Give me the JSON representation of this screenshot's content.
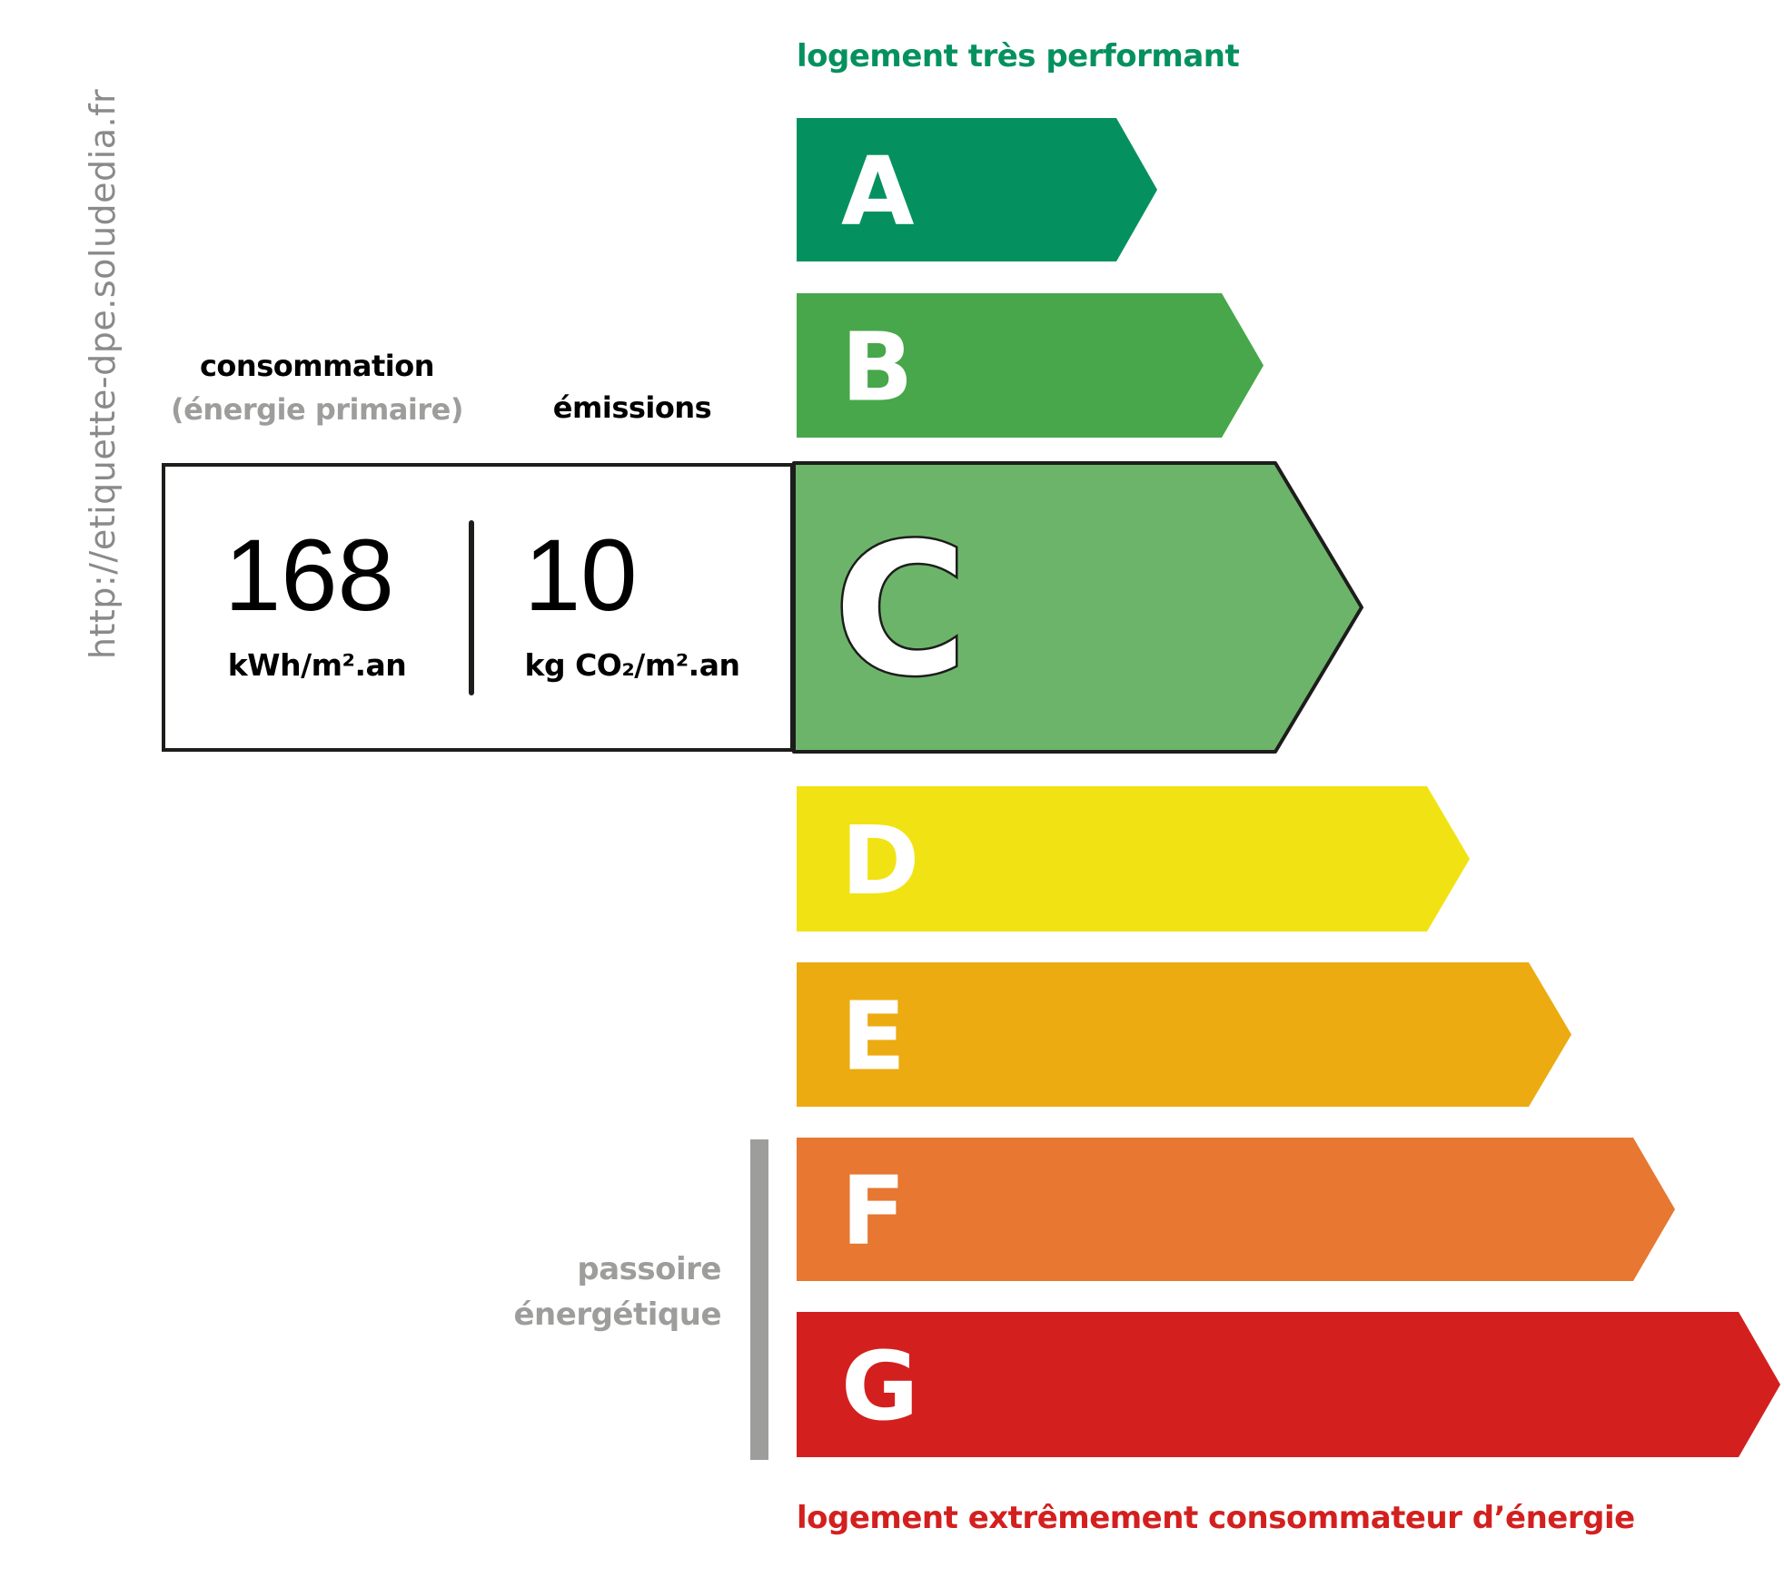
{
  "header": {
    "top_label": "logement très performant",
    "bottom_label": "logement extrêmement consommateur d’énergie"
  },
  "website": "http://etiquette-dpe.soludedia.fr",
  "consumption": {
    "title": "consommation",
    "subtitle": "(énergie primaire)",
    "value": "168",
    "unit": "kWh/m².an"
  },
  "emissions": {
    "title": "émissions",
    "value": "10",
    "unit": "kg CO₂/m².an"
  },
  "current_class": "C",
  "classes": [
    {
      "letter": "A",
      "color": "#05915f"
    },
    {
      "letter": "B",
      "color": "#47a74a"
    },
    {
      "letter": "C",
      "color": "#6db46b"
    },
    {
      "letter": "D",
      "color": "#f1e313"
    },
    {
      "letter": "E",
      "color": "#ecab10"
    },
    {
      "letter": "F",
      "color": "#e77731"
    },
    {
      "letter": "G",
      "color": "#d3201f"
    }
  ],
  "passoire": {
    "line1": "passoire",
    "line2": "énergétique",
    "classes": [
      "F",
      "G"
    ]
  }
}
